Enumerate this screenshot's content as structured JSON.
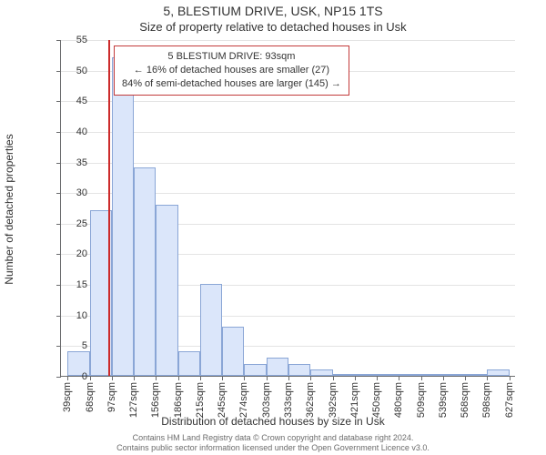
{
  "title_line1": "5, BLESTIUM DRIVE, USK, NP15 1TS",
  "title_line2": "Size of property relative to detached houses in Usk",
  "title_fontsize": 14,
  "subtitle_fontsize": 13,
  "ylabel": "Number of detached properties",
  "xlabel": "Distribution of detached houses by size in Usk",
  "axis_label_fontsize": 12,
  "tick_fontsize": 11,
  "chart": {
    "type": "histogram",
    "bar_fill": "#dbe6fa",
    "bar_border": "#8aa6d6",
    "grid_color": "#e4e4e4",
    "axis_color": "#6b6c6e",
    "background": "#ffffff",
    "marker_color": "#cc2b2b",
    "marker_value_sqm": 93,
    "ylim": [
      0,
      55
    ],
    "ytick_step": 5,
    "bin_start_sqm": 39,
    "bin_width_sqm": 29.4,
    "xlim_sqm": [
      30,
      636
    ],
    "x_tick_labels": [
      "39sqm",
      "68sqm",
      "97sqm",
      "127sqm",
      "156sqm",
      "186sqm",
      "215sqm",
      "245sqm",
      "274sqm",
      "303sqm",
      "333sqm",
      "362sqm",
      "392sqm",
      "421sqm",
      "450sqm",
      "480sqm",
      "509sqm",
      "539sqm",
      "568sqm",
      "598sqm",
      "627sqm"
    ],
    "bar_counts": [
      4,
      27,
      52,
      34,
      28,
      4,
      15,
      8,
      2,
      3,
      2,
      1,
      0,
      0,
      0,
      0,
      0,
      0,
      0,
      1
    ],
    "bars": 20
  },
  "annotation": {
    "line1": "5 BLESTIUM DRIVE: 93sqm",
    "line2": "← 16% of detached houses are smaller (27)",
    "line3": "84% of semi-detached houses are larger (145) →",
    "border_color": "#c23a3a",
    "background": "#ffffff",
    "fontsize": 11
  },
  "footer": {
    "line1": "Contains HM Land Registry data © Crown copyright and database right 2024.",
    "line2": "Contains public sector information licensed under the Open Government Licence v3.0.",
    "fontsize": 9,
    "color": "#6b6b6b"
  }
}
